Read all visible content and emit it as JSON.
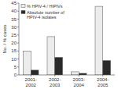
{
  "chart_data": {
    "type": "bar",
    "categories": [
      "2001-\n2002",
      "2002-\n2003",
      "2003-\n2004",
      "2004-\n2005"
    ],
    "series": [
      {
        "name": "% HPIV-4 / HIPIVs",
        "color": "#ececec",
        "values": [
          15,
          24,
          2,
          43
        ]
      },
      {
        "name": "Absolute number of\nHPIV-4 isolates",
        "color": "#2a2a2a",
        "values": [
          3,
          11,
          1,
          9
        ]
      }
    ],
    "ylabel": "No. / % cases",
    "ylim": [
      0,
      45
    ],
    "yticks": [
      0,
      5,
      10,
      15,
      20,
      25,
      30,
      35,
      40,
      45
    ],
    "legend": "upper left"
  }
}
